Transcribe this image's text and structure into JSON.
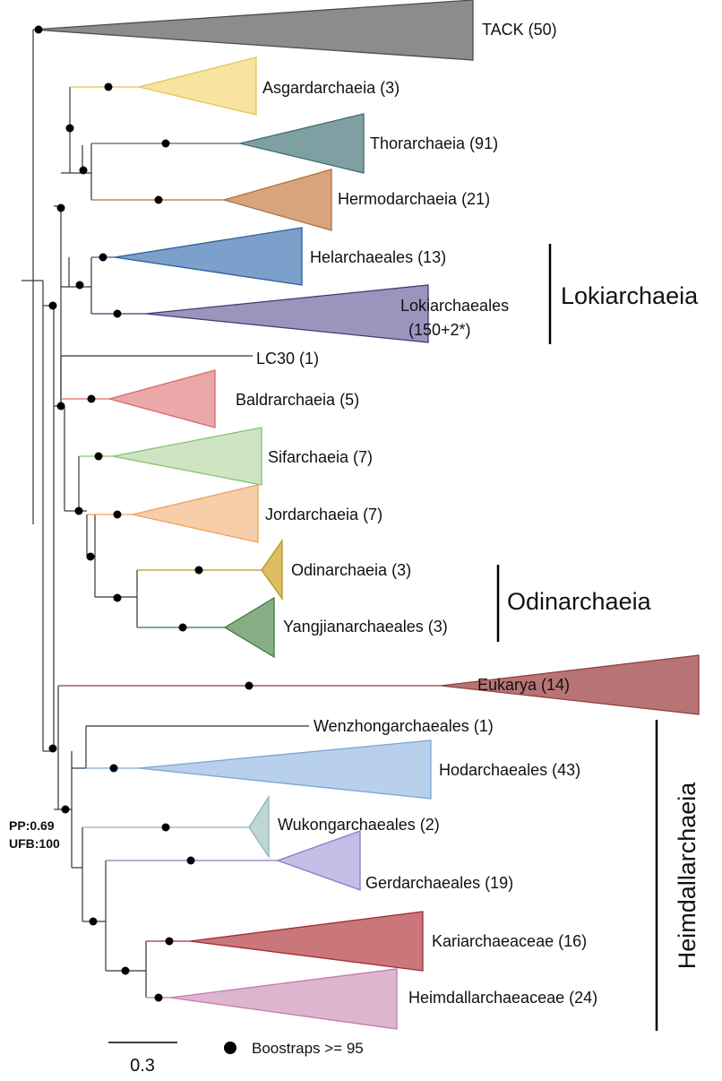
{
  "taxa": [
    {
      "id": "tack",
      "label": "TACK (50)",
      "color": "#4d4d4d",
      "fill": "#8c8c8c"
    },
    {
      "id": "asgard",
      "label": "Asgardarchaeia (3)",
      "color": "#e3c45c",
      "fill": "#f8e3a0"
    },
    {
      "id": "thor",
      "label": "Thorarchaeia (91)",
      "color": "#3e6d73",
      "fill": "#7fa0a2"
    },
    {
      "id": "hermod",
      "label": "Hermodarchaeia (21)",
      "color": "#b0703a",
      "fill": "#d8a47e"
    },
    {
      "id": "helarch",
      "label": "Helarchaeales (13)",
      "color": "#2f5f97",
      "fill": "#7ba0cc"
    },
    {
      "id": "lokiarch",
      "label_line1": "Lokiarchaeales",
      "label_line2": "(150+2*)",
      "color": "#3f3b77",
      "fill": "#9b95bd"
    },
    {
      "id": "lc30",
      "label": "LC30 (1)",
      "color": "#333333"
    },
    {
      "id": "baldr",
      "label": "Baldrarchaeia (5)",
      "color": "#d96a6a",
      "fill": "#eaa8a8"
    },
    {
      "id": "sif",
      "label": "Sifarchaeia (7)",
      "color": "#86c26f",
      "fill": "#cfe4c2"
    },
    {
      "id": "jord",
      "label": "Jordarchaeia (7)",
      "color": "#f0a15a",
      "fill": "#f6cfaa"
    },
    {
      "id": "odin",
      "label": "Odinarchaeia (3)",
      "color": "#b7961e",
      "fill": "#ddbe67"
    },
    {
      "id": "yangj",
      "label": "Yangjianarchaeales (3)",
      "color": "#3f7a3f",
      "fill": "#86ad84"
    },
    {
      "id": "euk",
      "label": "Eukarya (14)",
      "color": "#8d3f3f",
      "fill": "#b87474"
    },
    {
      "id": "wenz",
      "label": "Wenzhongarchaeales (1)",
      "color": "#333333"
    },
    {
      "id": "hod",
      "label": "Hodarchaeales (43)",
      "color": "#7aa6d8",
      "fill": "#b8d0ec"
    },
    {
      "id": "wuk",
      "label": "Wukongarchaeales (2)",
      "color": "#8fb5b5",
      "fill": "#bfd6d6"
    },
    {
      "id": "gerd",
      "label": "Gerdarchaeales (19)",
      "color": "#8b7ac7",
      "fill": "#c6bde6"
    },
    {
      "id": "kari",
      "label": "Kariarchaeaceae (16)",
      "color": "#a42e35",
      "fill": "#c9777a"
    },
    {
      "id": "heim",
      "label": "Heimdallarchaeaceae (24)",
      "color": "#c47aab",
      "fill": "#ddb5cf"
    }
  ],
  "groups": {
    "lokiarchaeia": "Lokiarchaeia",
    "odinarchaeia": "Odinarchaeia",
    "heimdallarchaeia": "Heimdallarchaeia"
  },
  "annotation": {
    "pp": "PP:0.69",
    "ufb": "UFB:100"
  },
  "scale_bar": {
    "value": "0.3"
  },
  "legend": {
    "label": "Boostraps >= 95"
  }
}
